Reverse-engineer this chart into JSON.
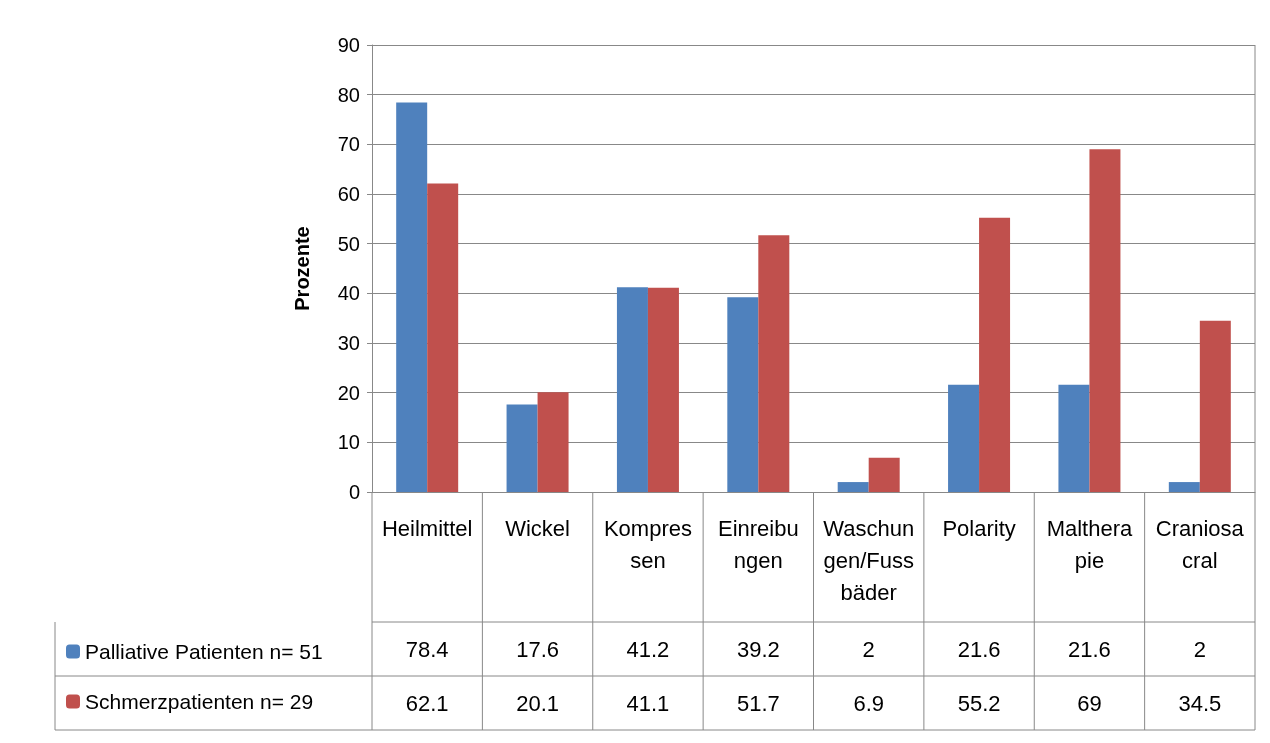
{
  "chart_data": {
    "type": "bar",
    "ylabel": "Prozente",
    "categories": [
      "Heilmittel",
      "Wickel",
      "Kompressen",
      "Einreibungen",
      "Waschungen/Fussbäder",
      "Polarity",
      "Maltherapie",
      "Craniosacral"
    ],
    "series": [
      {
        "name": "Palliative Patienten n= 51",
        "color": "#4f81bd",
        "values": [
          78.4,
          17.6,
          41.2,
          39.2,
          2,
          21.6,
          21.6,
          2
        ]
      },
      {
        "name": "Schmerzpatienten n= 29",
        "color": "#c0504d",
        "values": [
          62.1,
          20.1,
          41.1,
          51.7,
          6.9,
          55.2,
          69,
          34.5
        ]
      }
    ],
    "ylim": [
      0,
      90
    ],
    "yticks": [
      0,
      10,
      20,
      30,
      40,
      50,
      60,
      70,
      80,
      90
    ],
    "grid": "y",
    "legend": "bottom left",
    "data_labels": true
  }
}
